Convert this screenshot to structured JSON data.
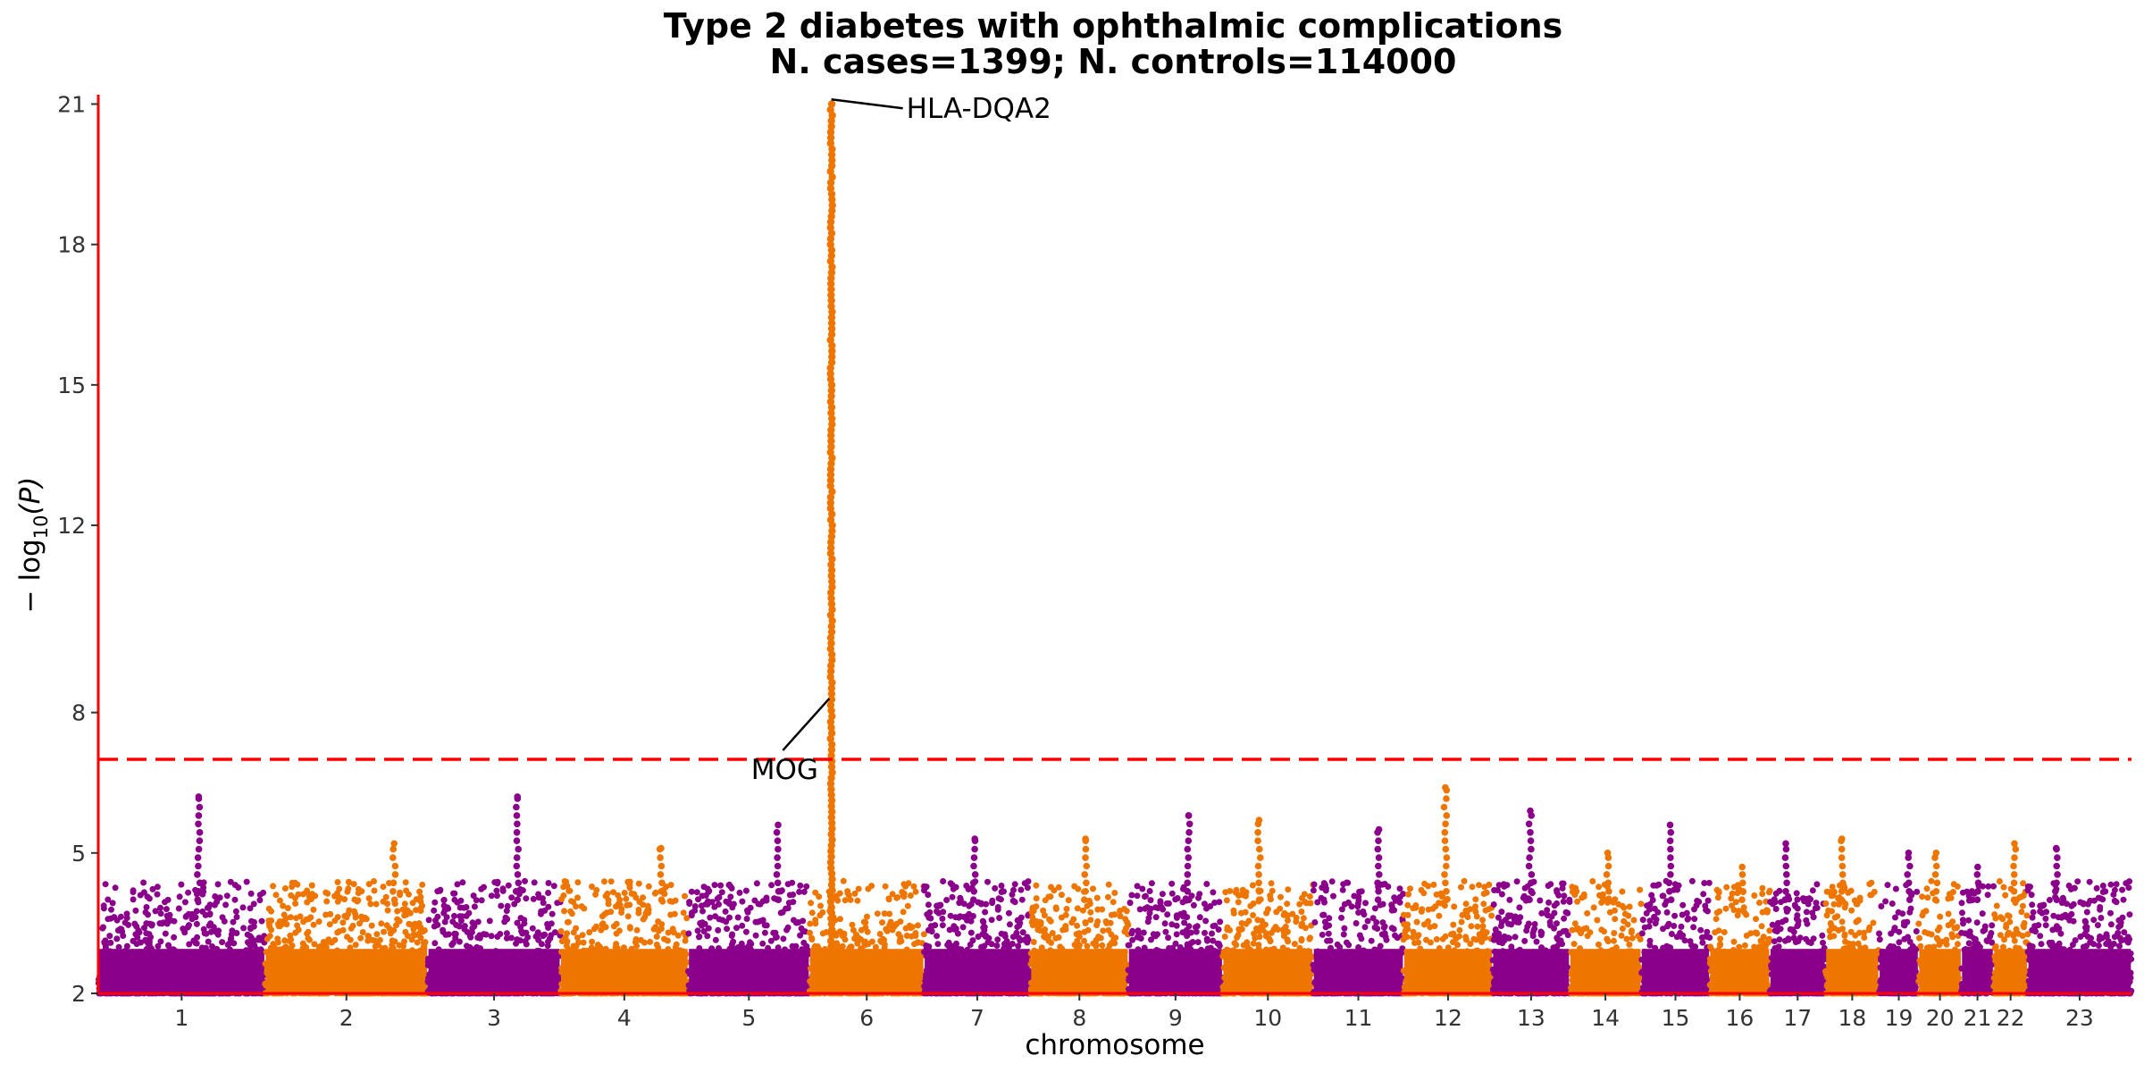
{
  "chart_data": {
    "type": "scatter",
    "title": "Type 2 diabetes with ophthalmic complications",
    "subtitle": "N. cases=1399; N. controls=114000",
    "xlabel": "chromosome",
    "ylabel_prefix": "− log",
    "ylabel_sub": "10",
    "ylabel_suffix": "(P)",
    "ylim": [
      2,
      21.2
    ],
    "yticks": [
      2,
      5,
      8,
      12,
      15,
      18,
      21
    ],
    "significance_line": 7.0,
    "colors": {
      "odd": "#8B008B",
      "even": "#EE7600",
      "axis": "#FF0000",
      "threshold": "#FF0000"
    },
    "chromosomes": [
      {
        "label": "1",
        "size": 249,
        "peak": 6.2
      },
      {
        "label": "2",
        "size": 243,
        "peak": 5.2
      },
      {
        "label": "3",
        "size": 198,
        "peak": 6.2
      },
      {
        "label": "4",
        "size": 191,
        "peak": 5.1
      },
      {
        "label": "5",
        "size": 181,
        "peak": 5.6
      },
      {
        "label": "6",
        "size": 171,
        "peak": 21.1
      },
      {
        "label": "7",
        "size": 159,
        "peak": 5.3
      },
      {
        "label": "8",
        "size": 146,
        "peak": 5.3
      },
      {
        "label": "9",
        "size": 141,
        "peak": 5.8
      },
      {
        "label": "10",
        "size": 135,
        "peak": 5.7
      },
      {
        "label": "11",
        "size": 135,
        "peak": 5.5
      },
      {
        "label": "12",
        "size": 133,
        "peak": 6.4
      },
      {
        "label": "13",
        "size": 115,
        "peak": 5.9
      },
      {
        "label": "14",
        "size": 107,
        "peak": 5.0
      },
      {
        "label": "15",
        "size": 102,
        "peak": 5.6
      },
      {
        "label": "16",
        "size": 90,
        "peak": 4.7
      },
      {
        "label": "17",
        "size": 83,
        "peak": 5.2
      },
      {
        "label": "18",
        "size": 80,
        "peak": 5.3
      },
      {
        "label": "19",
        "size": 59,
        "peak": 5.0
      },
      {
        "label": "20",
        "size": 64,
        "peak": 5.0
      },
      {
        "label": "21",
        "size": 48,
        "peak": 4.7
      },
      {
        "label": "22",
        "size": 51,
        "peak": 5.2
      },
      {
        "label": "23",
        "size": 155,
        "peak": 5.1
      }
    ],
    "annotations": [
      {
        "label": "HLA-DQA2",
        "chromosome": "6",
        "position_mb": 32.7,
        "value": 21.1
      },
      {
        "label": "MOG",
        "chromosome": "6",
        "position_mb": 29.6,
        "value": 8.3
      }
    ]
  }
}
